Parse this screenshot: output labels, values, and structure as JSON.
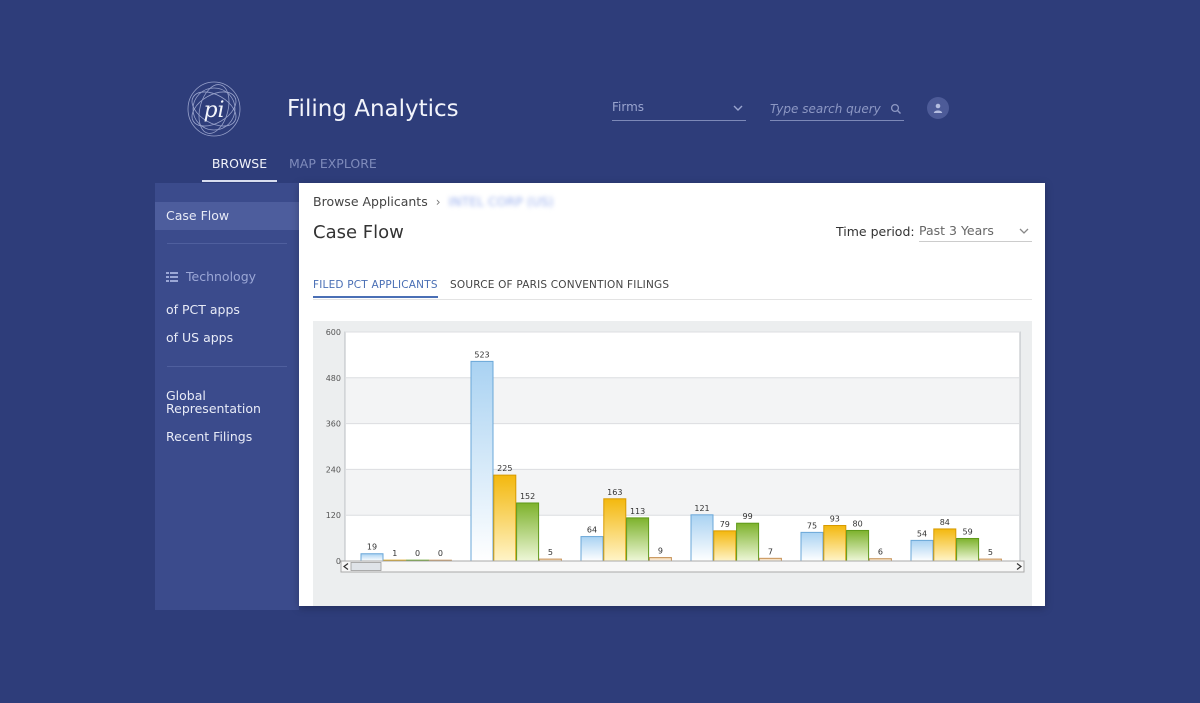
{
  "app": {
    "title": "Filing Analytics",
    "logo_text": "pi"
  },
  "header": {
    "firms_select": "Firms",
    "search_placeholder": "Type search query"
  },
  "nav": {
    "tabs": [
      {
        "label": "BROWSE"
      },
      {
        "label": "MAP EXPLORE"
      }
    ]
  },
  "sidebar": {
    "items": [
      {
        "label": "Case Flow"
      },
      {
        "label": "Technology"
      },
      {
        "label": "of PCT apps"
      },
      {
        "label": "of US apps"
      },
      {
        "label": "Global"
      },
      {
        "label": "Representation"
      },
      {
        "label": "Recent Filings"
      }
    ]
  },
  "main": {
    "breadcrumb": {
      "parent": "Browse Applicants",
      "separator": "›",
      "current": "INTEL CORP (US)"
    },
    "title": "Case Flow",
    "time_period": {
      "label": "Time period:",
      "value": "Past 3 Years"
    },
    "tabs": [
      {
        "label": "FILED PCT APPLICANTS"
      },
      {
        "label": "SOURCE OF PARIS CONVENTION FILINGS"
      }
    ]
  },
  "colors": {
    "background": "#2e3d7a",
    "sidebar": "#3b4b8c",
    "series_blue": "#bcdcf4",
    "series_yellow": "#f5c21b",
    "series_green": "#8cc13a",
    "series_orange": "#f1d9b8"
  },
  "chart_data": {
    "type": "bar",
    "categories": [
      "",
      "",
      "",
      "",
      "",
      ""
    ],
    "series": [
      {
        "values": [
          19,
          523,
          64,
          121,
          75,
          54
        ]
      },
      {
        "values": [
          1,
          225,
          163,
          79,
          93,
          84
        ]
      },
      {
        "values": [
          0,
          152,
          113,
          99,
          80,
          59
        ]
      },
      {
        "values": [
          0,
          5,
          9,
          7,
          6,
          5
        ]
      }
    ],
    "ylim": [
      0,
      600
    ],
    "yticks": [
      0,
      120,
      240,
      360,
      480,
      600
    ],
    "grid": true,
    "title": "",
    "xlabel": "",
    "ylabel": ""
  }
}
